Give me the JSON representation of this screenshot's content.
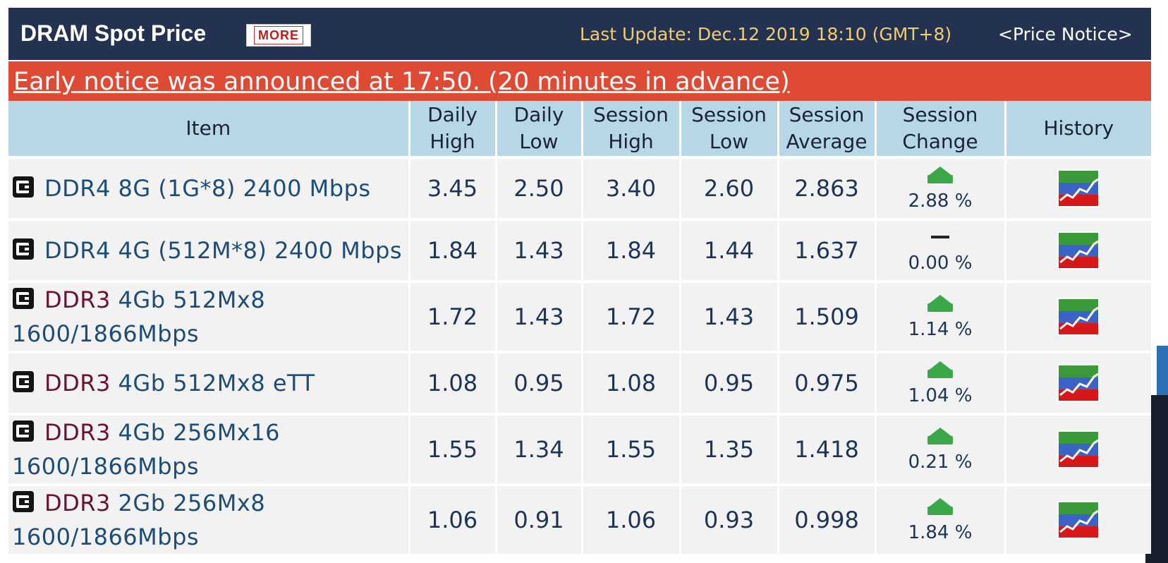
{
  "header": {
    "title": "DRAM Spot Price",
    "more_label": "MORE",
    "last_update": "Last Update: Dec.12 2019 18:10 (GMT+8)",
    "price_notice": "<Price Notice>"
  },
  "notice": "Early notice was announced at 17:50. (20 minutes in advance)",
  "columns": {
    "item": "Item",
    "daily_high": [
      "Daily",
      "High"
    ],
    "daily_low": [
      "Daily",
      "Low"
    ],
    "session_high": [
      "Session",
      "High"
    ],
    "session_low": [
      "Session",
      "Low"
    ],
    "session_average": [
      "Session",
      "Average"
    ],
    "session_change": [
      "Session",
      "Change"
    ],
    "history": "History"
  },
  "rows": [
    {
      "item_prefix": "DDR4",
      "item_rest": " 8G (1G*8) 2400 Mbps",
      "item_line2": "",
      "daily_high": "3.45",
      "daily_low": "2.50",
      "session_high": "3.40",
      "session_low": "2.60",
      "session_average": "2.863",
      "change_dir": "up",
      "change": "2.88 %"
    },
    {
      "item_prefix": "DDR4",
      "item_rest": " 4G (512M*8) 2400 Mbps",
      "item_line2": "",
      "daily_high": "1.84",
      "daily_low": "1.43",
      "session_high": "1.84",
      "session_low": "1.44",
      "session_average": "1.637",
      "change_dir": "flat",
      "change": "0.00 %"
    },
    {
      "item_prefix": "DDR3",
      "item_rest": " 4Gb 512Mx8",
      "item_line2": "1600/1866Mbps",
      "daily_high": "1.72",
      "daily_low": "1.43",
      "session_high": "1.72",
      "session_low": "1.43",
      "session_average": "1.509",
      "change_dir": "up",
      "change": "1.14 %"
    },
    {
      "item_prefix": "DDR3",
      "item_rest": " 4Gb 512Mx8 eTT",
      "item_line2": "",
      "daily_high": "1.08",
      "daily_low": "0.95",
      "session_high": "1.08",
      "session_low": "0.95",
      "session_average": "0.975",
      "change_dir": "up",
      "change": "1.04 %"
    },
    {
      "item_prefix": "DDR3",
      "item_rest": " 4Gb 256Mx16",
      "item_line2": "1600/1866Mbps",
      "daily_high": "1.55",
      "daily_low": "1.34",
      "session_high": "1.55",
      "session_low": "1.35",
      "session_average": "1.418",
      "change_dir": "up",
      "change": "0.21 %"
    },
    {
      "item_prefix": "DDR3",
      "item_rest": " 2Gb 256Mx8",
      "item_line2": "1600/1866Mbps",
      "daily_high": "1.06",
      "daily_low": "0.91",
      "session_high": "1.06",
      "session_low": "0.93",
      "session_average": "0.998",
      "change_dir": "up",
      "change": "1.84 %"
    }
  ],
  "icons": {
    "item": "memory-chip-icon",
    "history": "history-chart-icon",
    "up": "arrow-up-icon",
    "flat": "no-change-dash-icon"
  },
  "colors": {
    "header_bg": "#233250",
    "notice_bg": "#df4a35",
    "table_header_bg": "#b6d7e5",
    "row_bg": "#f2f2f2",
    "update_text": "#f0cc73",
    "up_arrow": "#3aa848",
    "ddr3_label": "#6b1034"
  }
}
